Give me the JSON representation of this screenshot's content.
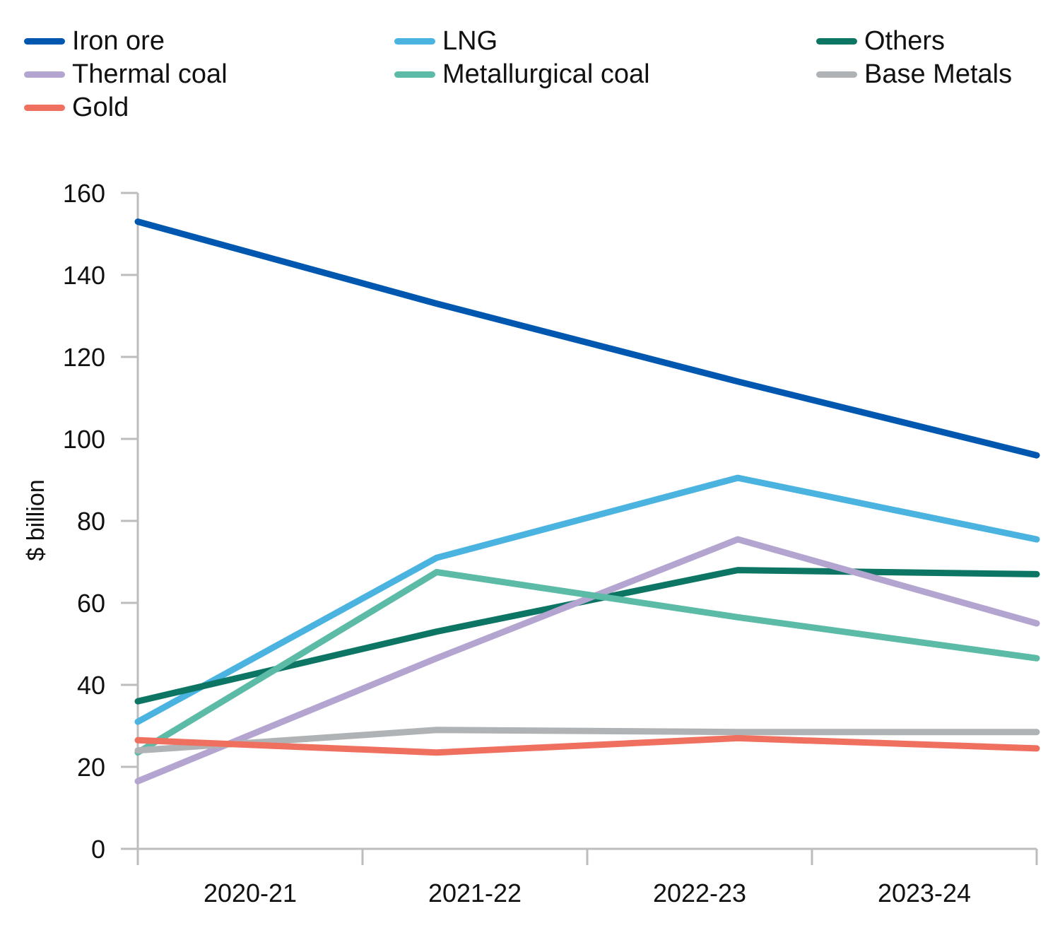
{
  "chart_data": {
    "type": "line",
    "title": "",
    "xlabel": "",
    "ylabel": "$ billion",
    "ylim": [
      0,
      160
    ],
    "yticks": [
      0,
      20,
      40,
      60,
      80,
      100,
      120,
      140,
      160
    ],
    "categories": [
      "2020-21",
      "2021-22",
      "2022-23",
      "2023-24"
    ],
    "x": [
      0,
      1.33,
      2.67,
      4
    ],
    "grid": false,
    "legend_position": "top",
    "series": [
      {
        "name": "Iron ore",
        "color": "#0057b0",
        "values": [
          153,
          133,
          114,
          96
        ]
      },
      {
        "name": "LNG",
        "color": "#4ab3e0",
        "values": [
          31,
          71,
          90.5,
          75.5
        ]
      },
      {
        "name": "Others",
        "color": "#0d7564",
        "values": [
          36,
          53,
          68,
          67
        ]
      },
      {
        "name": "Thermal coal",
        "color": "#b4a4d0",
        "values": [
          16.5,
          46.5,
          75.5,
          55
        ]
      },
      {
        "name": "Metallurgical coal",
        "color": "#5bbba6",
        "values": [
          23.5,
          67.5,
          56.5,
          46.5
        ]
      },
      {
        "name": "Base Metals",
        "color": "#b0b3b5",
        "values": [
          24,
          29,
          28.5,
          28.5
        ]
      },
      {
        "name": "Gold",
        "color": "#f07060",
        "values": [
          26.5,
          23.5,
          27,
          24.5
        ]
      }
    ]
  }
}
